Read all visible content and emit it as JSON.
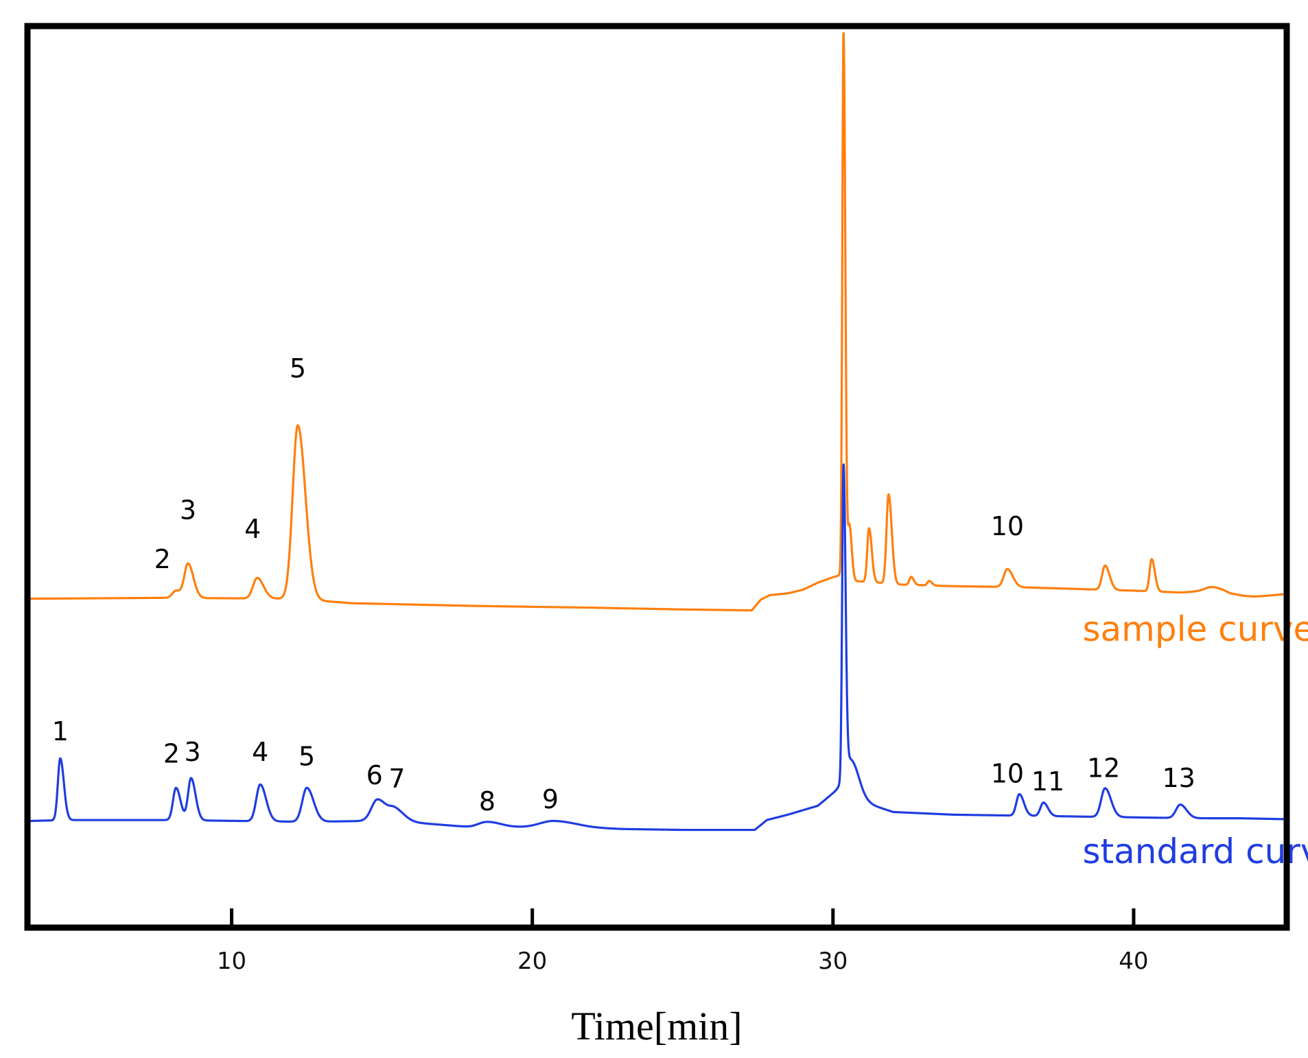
{
  "chart_data": {
    "type": "line",
    "title": "",
    "xlabel": "Time[min]",
    "ylabel": "",
    "xlim": [
      3.3,
      45.0
    ],
    "ylim": [
      0,
      100
    ],
    "x_ticks": [
      10,
      20,
      30,
      40
    ],
    "x_tick_labels": [
      "10",
      "20",
      "30",
      "40"
    ],
    "grid": false,
    "y_axis_labels_shown": false,
    "series": [
      {
        "name": "sample curve",
        "color": "#ff7f0e",
        "baseline": [
          [
            3.3,
            36.4
          ],
          [
            7.8,
            36.5
          ],
          [
            12,
            36.4
          ],
          [
            14,
            35.9
          ],
          [
            18,
            35.6
          ],
          [
            22,
            35.4
          ],
          [
            25,
            35.2
          ],
          [
            27.3,
            35.1
          ],
          [
            27.6,
            36.3
          ],
          [
            27.9,
            36.8
          ],
          [
            28.5,
            37.0
          ],
          [
            29.0,
            37.4
          ],
          [
            29.5,
            38.2
          ],
          [
            30.0,
            38.8
          ],
          [
            30.2,
            39.0
          ],
          [
            30.6,
            38.4
          ],
          [
            31.5,
            38.2
          ],
          [
            32.0,
            38.0
          ],
          [
            33,
            37.9
          ],
          [
            34,
            37.8
          ],
          [
            36,
            37.7
          ],
          [
            38,
            37.5
          ],
          [
            40,
            37.3
          ],
          [
            41.5,
            37.1
          ],
          [
            42.5,
            37.2
          ],
          [
            43.2,
            36.5
          ],
          [
            44,
            36.6
          ],
          [
            45,
            36.9
          ]
        ],
        "peaks": [
          {
            "label": "2",
            "rt": 8.15,
            "height": 0.8,
            "width": 0.12
          },
          {
            "label": "3",
            "rt": 8.55,
            "height": 3.8,
            "width": 0.12
          },
          {
            "label": "4",
            "rt": 10.85,
            "height": 2.3,
            "width": 0.14
          },
          {
            "label": "5",
            "rt": 12.2,
            "height": 19.4,
            "width": 0.17
          },
          {
            "label": "",
            "rt": 30.35,
            "height": 61.0,
            "width": 0.04
          },
          {
            "label": "",
            "rt": 30.55,
            "height": 6.0,
            "width": 0.05
          },
          {
            "label": "",
            "rt": 31.2,
            "height": 6.0,
            "width": 0.06
          },
          {
            "label": "",
            "rt": 31.85,
            "height": 10.0,
            "width": 0.07
          },
          {
            "label": "",
            "rt": 32.6,
            "height": 0.9,
            "width": 0.06
          },
          {
            "label": "",
            "rt": 33.2,
            "height": 0.5,
            "width": 0.06
          },
          {
            "label": "10",
            "rt": 35.8,
            "height": 2.0,
            "width": 0.12
          },
          {
            "label": "",
            "rt": 39.05,
            "height": 2.7,
            "width": 0.1
          },
          {
            "label": "",
            "rt": 40.6,
            "height": 3.6,
            "width": 0.07
          },
          {
            "label": "",
            "rt": 42.8,
            "height": 0.7,
            "width": 0.35
          }
        ],
        "peak_labels": [
          {
            "text": "2",
            "x": 7.7,
            "y": 39.8
          },
          {
            "text": "3",
            "x": 8.55,
            "y": 45.3
          },
          {
            "text": "4",
            "x": 10.7,
            "y": 43.2
          },
          {
            "text": "5",
            "x": 12.2,
            "y": 61.1
          },
          {
            "text": "10",
            "x": 35.8,
            "y": 43.5
          }
        ]
      },
      {
        "name": "standard curve",
        "color": "#1f3de0",
        "baseline": [
          [
            3.3,
            11.6
          ],
          [
            4.5,
            11.7
          ],
          [
            8,
            11.7
          ],
          [
            12.5,
            11.5
          ],
          [
            14.5,
            11.6
          ],
          [
            15.5,
            11.6
          ],
          [
            16.5,
            11.3
          ],
          [
            18,
            10.9
          ],
          [
            20,
            10.9
          ],
          [
            21.5,
            10.9
          ],
          [
            23,
            10.7
          ],
          [
            25,
            10.6
          ],
          [
            27.4,
            10.6
          ],
          [
            27.8,
            11.7
          ],
          [
            28.5,
            12.3
          ],
          [
            29.0,
            12.8
          ],
          [
            29.5,
            13.3
          ],
          [
            30.0,
            14.7
          ],
          [
            30.2,
            15.2
          ],
          [
            31,
            13.7
          ],
          [
            32,
            12.6
          ],
          [
            34,
            12.3
          ],
          [
            36,
            12.2
          ],
          [
            38,
            12.1
          ],
          [
            40,
            12.0
          ],
          [
            42,
            11.9
          ],
          [
            43.5,
            11.9
          ],
          [
            45,
            11.8
          ]
        ],
        "peaks": [
          {
            "label": "1",
            "rt": 4.3,
            "height": 6.9,
            "width": 0.08
          },
          {
            "label": "2",
            "rt": 8.15,
            "height": 3.6,
            "width": 0.1
          },
          {
            "label": "3",
            "rt": 8.65,
            "height": 4.7,
            "width": 0.1
          },
          {
            "label": "4",
            "rt": 10.95,
            "height": 4.1,
            "width": 0.13
          },
          {
            "label": "5",
            "rt": 12.5,
            "height": 3.8,
            "width": 0.15
          },
          {
            "label": "6",
            "rt": 14.85,
            "height": 2.4,
            "width": 0.2
          },
          {
            "label": "7",
            "rt": 15.45,
            "height": 1.2,
            "width": 0.2
          },
          {
            "label": "8",
            "rt": 18.5,
            "height": 0.6,
            "width": 0.3
          },
          {
            "label": "9",
            "rt": 20.7,
            "height": 0.7,
            "width": 0.45
          },
          {
            "label": "",
            "rt": 30.35,
            "height": 35.0,
            "width": 0.045
          },
          {
            "label": "",
            "rt": 30.6,
            "height": 4.0,
            "width": 0.18
          },
          {
            "label": "10",
            "rt": 36.2,
            "height": 2.4,
            "width": 0.1
          },
          {
            "label": "11",
            "rt": 37.0,
            "height": 1.5,
            "width": 0.1
          },
          {
            "label": "12",
            "rt": 39.05,
            "height": 3.2,
            "width": 0.13
          },
          {
            "label": "13",
            "rt": 41.55,
            "height": 1.5,
            "width": 0.14
          }
        ],
        "peak_labels": [
          {
            "text": "1",
            "x": 4.3,
            "y": 20.6
          },
          {
            "text": "2",
            "x": 8.0,
            "y": 18.1
          },
          {
            "text": "3",
            "x": 8.7,
            "y": 18.3
          },
          {
            "text": "4",
            "x": 10.95,
            "y": 18.3
          },
          {
            "text": "5",
            "x": 12.5,
            "y": 17.8
          },
          {
            "text": "6",
            "x": 14.75,
            "y": 15.7
          },
          {
            "text": "7",
            "x": 15.5,
            "y": 15.3
          },
          {
            "text": "8",
            "x": 18.5,
            "y": 12.8
          },
          {
            "text": "9",
            "x": 20.6,
            "y": 13.0
          },
          {
            "text": "10",
            "x": 35.8,
            "y": 15.9
          },
          {
            "text": "11",
            "x": 37.15,
            "y": 15.0
          },
          {
            "text": "12",
            "x": 39.0,
            "y": 16.5
          },
          {
            "text": "13",
            "x": 41.5,
            "y": 15.4
          }
        ]
      }
    ],
    "legend": {
      "placement": "in-plot, right of each curve",
      "entries": [
        {
          "text": "sample curve",
          "color": "#ff7f0e",
          "x": 38.3,
          "y": 31.7
        },
        {
          "text": "standard curve",
          "color": "#1f3de0",
          "x": 38.3,
          "y": 6.9
        }
      ]
    }
  }
}
